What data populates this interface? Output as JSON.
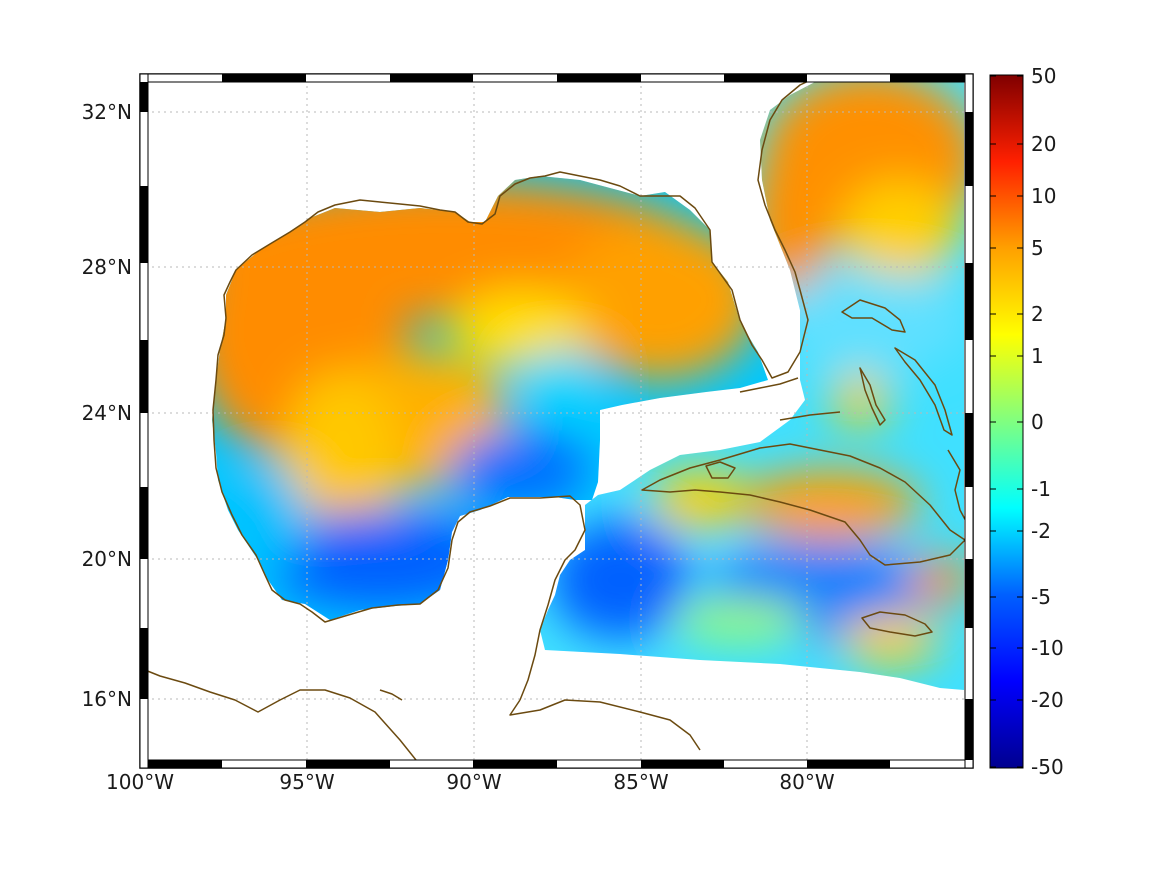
{
  "map": {
    "projection": "equirectangular",
    "extent": {
      "lon_min": -100,
      "lon_max": -75,
      "lat_min": 14.2,
      "lat_max": 33.0
    },
    "grid": "dotted",
    "frame": "alternating black-white",
    "x_ticks": [
      {
        "lon": -100,
        "label": "100°W"
      },
      {
        "lon": -95,
        "label": "95°W"
      },
      {
        "lon": -90,
        "label": "90°W"
      },
      {
        "lon": -85,
        "label": "85°W"
      },
      {
        "lon": -80,
        "label": "80°W"
      }
    ],
    "y_ticks": [
      {
        "lat": 32,
        "label": "32°N"
      },
      {
        "lat": 28,
        "label": "28°N"
      },
      {
        "lat": 24,
        "label": "24°N"
      },
      {
        "lat": 20,
        "label": "20°N"
      },
      {
        "lat": 16,
        "label": "16°N"
      }
    ],
    "coastline_color": "#6b4a10",
    "colormap": "jet",
    "colorbar": {
      "position": "right",
      "ticks": [
        "50",
        "20",
        "10",
        "5",
        "2",
        "1",
        "0",
        "-1",
        "-2",
        "-5",
        "-10",
        "-20",
        "-50"
      ]
    }
  }
}
